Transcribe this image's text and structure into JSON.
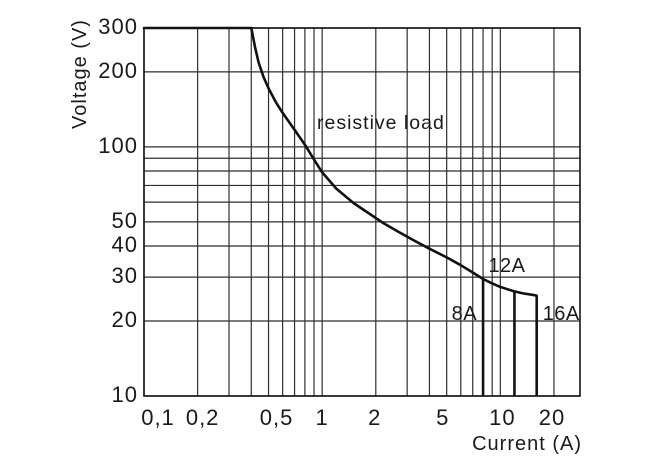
{
  "chart_data": {
    "type": "line",
    "title": "",
    "xlabel": "Current (A)",
    "ylabel": "Voltage (V)",
    "x_scale": "log",
    "y_scale": "log",
    "xlim": [
      0.1,
      28
    ],
    "ylim": [
      10,
      300
    ],
    "grid": true,
    "legend": false,
    "x_ticks": [
      {
        "value": 0.1,
        "label": "0,1"
      },
      {
        "value": 0.2,
        "label": "0,2"
      },
      {
        "value": 0.5,
        "label": "0,5"
      },
      {
        "value": 1,
        "label": "1"
      },
      {
        "value": 2,
        "label": "2"
      },
      {
        "value": 5,
        "label": "5"
      },
      {
        "value": 10,
        "label": "10"
      },
      {
        "value": 20,
        "label": "20"
      }
    ],
    "y_ticks": [
      {
        "value": 300,
        "label": "300"
      },
      {
        "value": 200,
        "label": "200"
      },
      {
        "value": 100,
        "label": "100"
      },
      {
        "value": 50,
        "label": "50"
      },
      {
        "value": 40,
        "label": "40"
      },
      {
        "value": 30,
        "label": "30"
      },
      {
        "value": 20,
        "label": "20"
      },
      {
        "value": 10,
        "label": "10"
      }
    ],
    "x_gridlines": [
      0.1,
      0.2,
      0.3,
      0.4,
      0.5,
      0.6,
      0.7,
      0.8,
      0.9,
      1,
      2,
      3,
      4,
      5,
      6,
      7,
      8,
      9,
      10,
      20
    ],
    "y_gridlines": [
      300,
      200,
      100,
      90,
      80,
      70,
      60,
      50,
      40,
      30,
      20,
      10
    ],
    "annotation": {
      "text": "resistive load"
    },
    "series": [
      {
        "name": "resistive load",
        "points": [
          [
            0.1,
            300
          ],
          [
            0.4,
            300
          ],
          [
            0.42,
            252
          ],
          [
            0.44,
            218
          ],
          [
            0.47,
            190
          ],
          [
            0.5,
            172
          ],
          [
            0.55,
            151
          ],
          [
            0.6,
            137
          ],
          [
            0.7,
            117
          ],
          [
            0.8,
            102
          ],
          [
            0.9,
            89
          ],
          [
            1.0,
            79
          ],
          [
            1.2,
            68
          ],
          [
            1.5,
            59.5
          ],
          [
            1.8,
            54.5
          ],
          [
            2.2,
            49.5
          ],
          [
            2.7,
            45.5
          ],
          [
            3.3,
            42
          ],
          [
            4,
            39
          ],
          [
            5,
            36
          ],
          [
            6,
            33.5
          ],
          [
            7,
            31.3
          ],
          [
            8,
            29.5
          ],
          [
            9,
            28.3
          ],
          [
            10,
            27.4
          ],
          [
            11,
            26.8
          ],
          [
            12,
            26.3
          ],
          [
            13.5,
            25.8
          ],
          [
            15,
            25.5
          ],
          [
            16,
            25.3
          ]
        ]
      }
    ],
    "rating_lines": [
      {
        "label": "8A",
        "current": 8,
        "curve_voltage": 29.5
      },
      {
        "label": "12A",
        "current": 12,
        "curve_voltage": 26.3
      },
      {
        "label": "16A",
        "current": 16,
        "curve_voltage": 25.3
      }
    ]
  },
  "colors": {
    "background": "#ffffff",
    "grid": "#2f2f2f",
    "frame": "#141414",
    "curve": "#111111",
    "text": "#1a1a1a"
  }
}
